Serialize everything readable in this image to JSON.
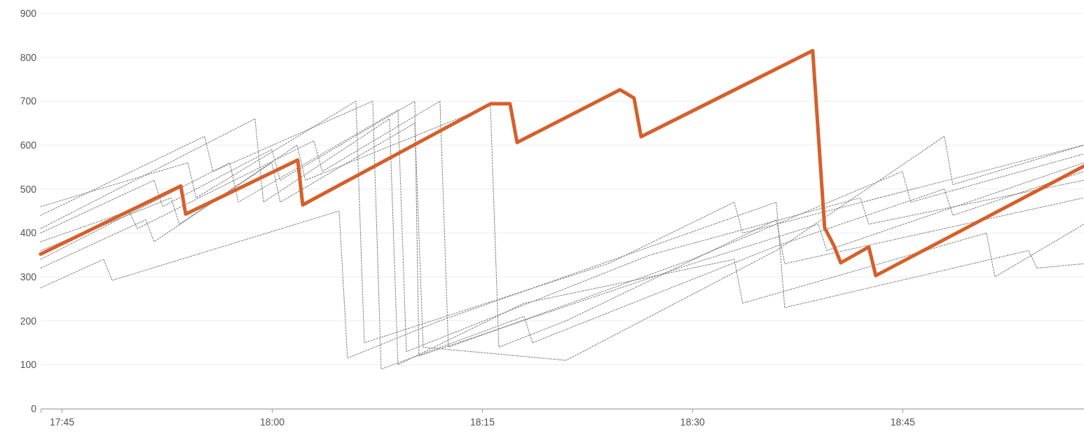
{
  "chart_data": {
    "type": "line",
    "xlim": [
      17.725,
      18.966
    ],
    "ylim": [
      0,
      900
    ],
    "xticks": [
      {
        "value": 17.75,
        "label": "17:45"
      },
      {
        "value": 18,
        "label": "18:00"
      },
      {
        "value": 18.25,
        "label": "18:15"
      },
      {
        "value": 18.5,
        "label": "18:30"
      },
      {
        "value": 18.75,
        "label": "18:45"
      }
    ],
    "yticks": [
      0,
      100,
      200,
      300,
      400,
      500,
      600,
      700,
      800,
      900
    ],
    "grid": "y",
    "marker": "none",
    "series": [
      {
        "color": "#888888",
        "line_style": "dotted",
        "x": [
          17.725,
          17.86,
          17.87,
          18.0,
          18.01,
          18.17,
          18.175,
          18.5,
          18.65,
          18.66,
          18.966
        ],
        "values": [
          400,
          520,
          460,
          590,
          520,
          700,
          120,
          330,
          420,
          360,
          560
        ]
      },
      {
        "color": "#888888",
        "line_style": "dotted",
        "x": [
          17.725,
          17.8,
          17.81,
          18.08,
          18.09,
          18.2,
          18.6,
          18.61,
          18.9,
          18.91,
          18.966
        ],
        "values": [
          275,
          340,
          292,
          450,
          115,
          200,
          470,
          230,
          360,
          320,
          330
        ]
      },
      {
        "color": "#888888",
        "line_style": "dotted",
        "x": [
          17.725,
          17.9,
          17.91,
          18.1,
          18.11,
          18.4,
          18.55,
          18.56,
          18.966
        ],
        "values": [
          460,
          560,
          480,
          700,
          150,
          330,
          470,
          400,
          600
        ]
      },
      {
        "color": "#888888",
        "line_style": "dotted",
        "x": [
          17.725,
          17.95,
          17.96,
          18.15,
          18.16,
          18.45,
          18.7,
          18.71,
          18.966
        ],
        "values": [
          340,
          560,
          470,
          680,
          130,
          350,
          480,
          420,
          520
        ]
      },
      {
        "color": "#888888",
        "line_style": "dotted",
        "x": [
          17.725,
          17.83,
          17.84,
          18.05,
          18.06,
          18.2,
          18.21,
          18.5,
          18.75,
          18.76,
          18.966
        ],
        "values": [
          380,
          450,
          410,
          610,
          540,
          700,
          140,
          340,
          540,
          470,
          580
        ]
      },
      {
        "color": "#888888",
        "line_style": "dotted",
        "x": [
          17.725,
          17.92,
          17.93,
          18.12,
          18.13,
          18.3,
          18.31,
          18.6,
          18.8,
          18.81,
          18.966
        ],
        "values": [
          440,
          620,
          540,
          700,
          90,
          210,
          150,
          370,
          500,
          440,
          540
        ]
      },
      {
        "color": "#888888",
        "line_style": "dotted",
        "x": [
          17.725,
          17.88,
          17.89,
          18.03,
          18.04,
          18.26,
          18.27,
          18.35,
          18.6,
          18.61,
          18.966
        ],
        "values": [
          360,
          480,
          420,
          600,
          520,
          690,
          140,
          200,
          430,
          330,
          480
        ]
      },
      {
        "color": "#888888",
        "line_style": "dotted",
        "x": [
          17.725,
          17.98,
          17.99,
          18.14,
          18.15,
          18.3,
          18.55,
          18.56,
          18.85,
          18.86,
          18.966
        ],
        "values": [
          410,
          660,
          470,
          660,
          100,
          240,
          340,
          240,
          400,
          300,
          420
        ]
      },
      {
        "color": "#888888",
        "line_style": "dotted",
        "x": [
          17.725,
          17.85,
          17.86,
          18.0,
          18.01,
          18.17,
          18.18,
          18.35,
          18.6,
          18.8,
          18.81,
          18.966
        ],
        "values": [
          320,
          430,
          380,
          560,
          470,
          650,
          140,
          110,
          360,
          620,
          510,
          600
        ]
      },
      {
        "color": "#d65f2b",
        "line_style": "solid",
        "x": [
          17.725,
          17.8917,
          17.8975,
          18.0308,
          18.0367,
          18.26,
          18.2833,
          18.2917,
          18.4142,
          18.4308,
          18.4392,
          18.6433,
          18.6575,
          18.6683,
          18.6767,
          18.71,
          18.7183,
          18.9658
        ],
        "values": [
          352,
          507,
          443,
          566,
          464,
          694,
          694,
          606,
          726,
          707,
          619,
          815,
          412,
          372,
          332,
          368,
          303,
          552
        ]
      }
    ]
  }
}
